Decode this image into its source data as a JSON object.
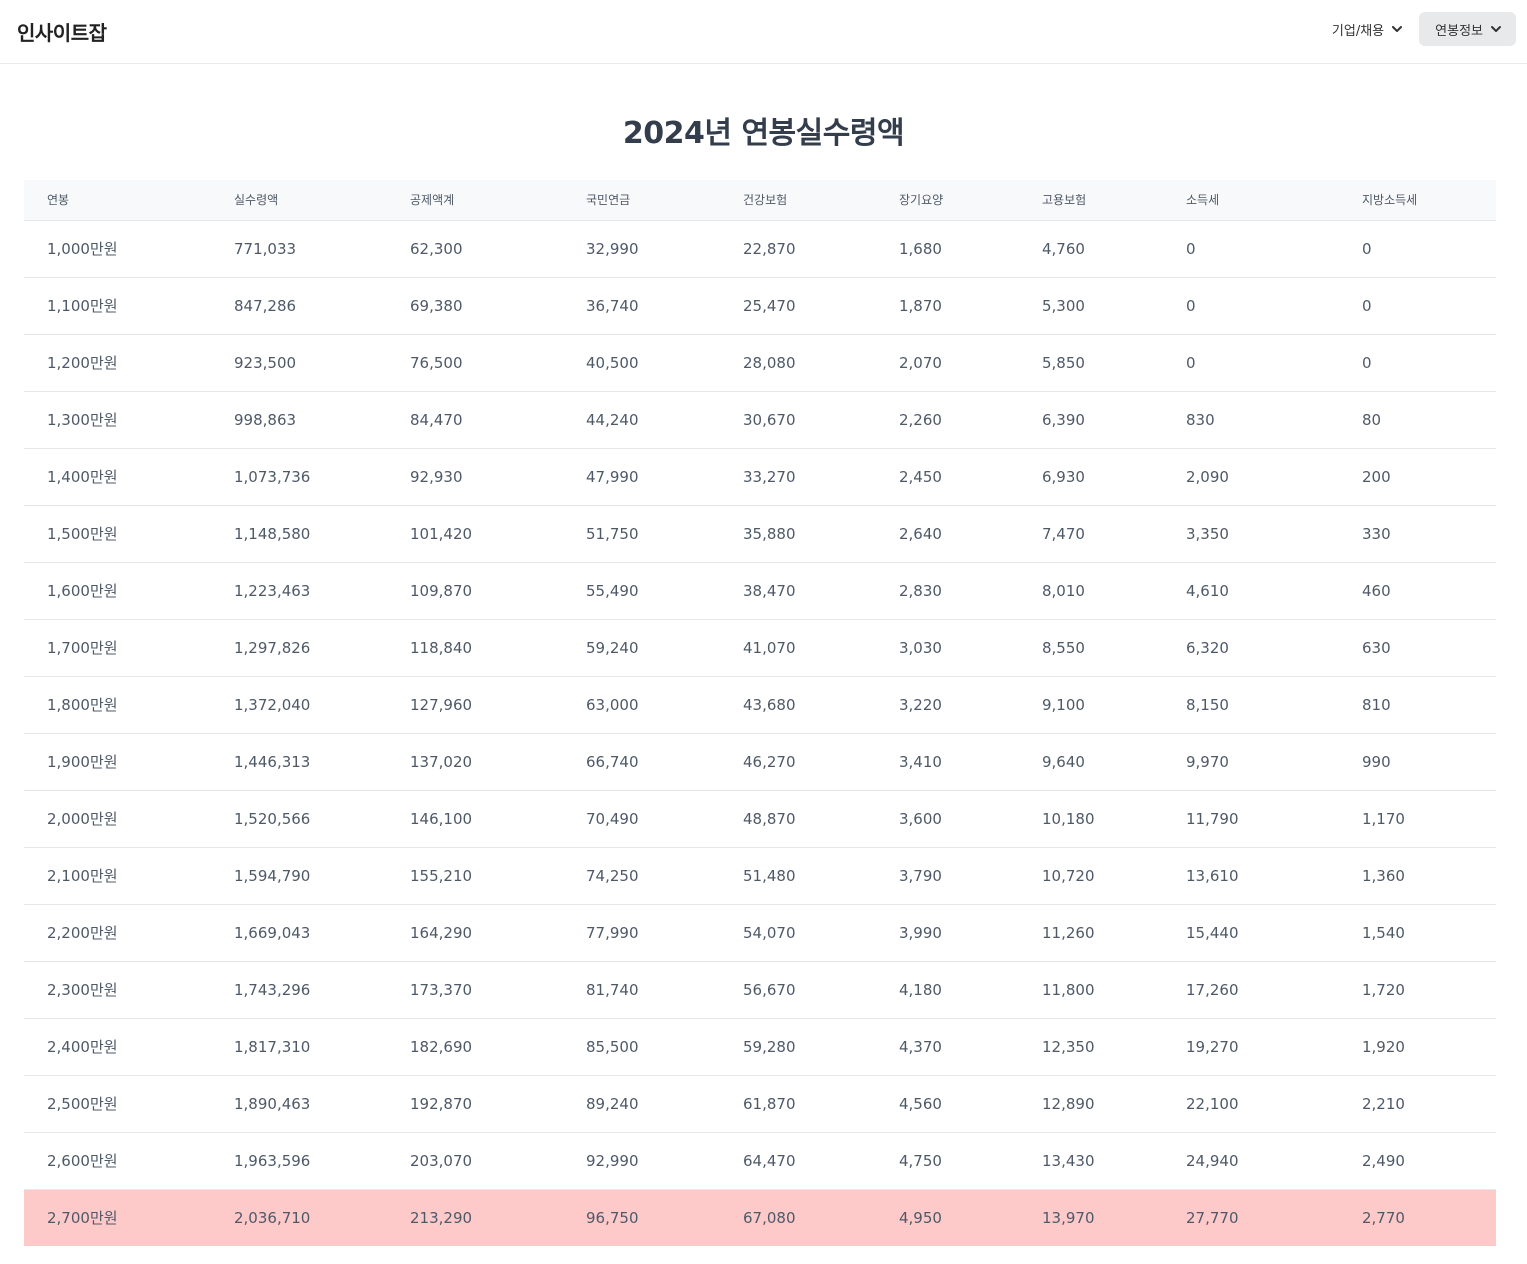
{
  "header": {
    "logo": "인사이트잡",
    "nav": [
      {
        "label": "기업/채용"
      },
      {
        "label": "연봉정보"
      }
    ]
  },
  "page": {
    "title": "2024년 연봉실수령액"
  },
  "table": {
    "columns": [
      "연봉",
      "실수령액",
      "공제액계",
      "국민연금",
      "건강보험",
      "장기요양",
      "고용보험",
      "소득세",
      "지방소득세"
    ],
    "rows": [
      [
        "1,000만원",
        "771,033",
        "62,300",
        "32,990",
        "22,870",
        "1,680",
        "4,760",
        "0",
        "0"
      ],
      [
        "1,100만원",
        "847,286",
        "69,380",
        "36,740",
        "25,470",
        "1,870",
        "5,300",
        "0",
        "0"
      ],
      [
        "1,200만원",
        "923,500",
        "76,500",
        "40,500",
        "28,080",
        "2,070",
        "5,850",
        "0",
        "0"
      ],
      [
        "1,300만원",
        "998,863",
        "84,470",
        "44,240",
        "30,670",
        "2,260",
        "6,390",
        "830",
        "80"
      ],
      [
        "1,400만원",
        "1,073,736",
        "92,930",
        "47,990",
        "33,270",
        "2,450",
        "6,930",
        "2,090",
        "200"
      ],
      [
        "1,500만원",
        "1,148,580",
        "101,420",
        "51,750",
        "35,880",
        "2,640",
        "7,470",
        "3,350",
        "330"
      ],
      [
        "1,600만원",
        "1,223,463",
        "109,870",
        "55,490",
        "38,470",
        "2,830",
        "8,010",
        "4,610",
        "460"
      ],
      [
        "1,700만원",
        "1,297,826",
        "118,840",
        "59,240",
        "41,070",
        "3,030",
        "8,550",
        "6,320",
        "630"
      ],
      [
        "1,800만원",
        "1,372,040",
        "127,960",
        "63,000",
        "43,680",
        "3,220",
        "9,100",
        "8,150",
        "810"
      ],
      [
        "1,900만원",
        "1,446,313",
        "137,020",
        "66,740",
        "46,270",
        "3,410",
        "9,640",
        "9,970",
        "990"
      ],
      [
        "2,000만원",
        "1,520,566",
        "146,100",
        "70,490",
        "48,870",
        "3,600",
        "10,180",
        "11,790",
        "1,170"
      ],
      [
        "2,100만원",
        "1,594,790",
        "155,210",
        "74,250",
        "51,480",
        "3,790",
        "10,720",
        "13,610",
        "1,360"
      ],
      [
        "2,200만원",
        "1,669,043",
        "164,290",
        "77,990",
        "54,070",
        "3,990",
        "11,260",
        "15,440",
        "1,540"
      ],
      [
        "2,300만원",
        "1,743,296",
        "173,370",
        "81,740",
        "56,670",
        "4,180",
        "11,800",
        "17,260",
        "1,720"
      ],
      [
        "2,400만원",
        "1,817,310",
        "182,690",
        "85,500",
        "59,280",
        "4,370",
        "12,350",
        "19,270",
        "1,920"
      ],
      [
        "2,500만원",
        "1,890,463",
        "192,870",
        "89,240",
        "61,870",
        "4,560",
        "12,890",
        "22,100",
        "2,210"
      ],
      [
        "2,600만원",
        "1,963,596",
        "203,070",
        "92,990",
        "64,470",
        "4,750",
        "13,430",
        "24,940",
        "2,490"
      ],
      [
        "2,700만원",
        "2,036,710",
        "213,290",
        "96,750",
        "67,080",
        "4,950",
        "13,970",
        "27,770",
        "2,770"
      ]
    ],
    "highlight_row": 17,
    "highlight_color": "#fec9c9"
  },
  "colors": {
    "text": "#333d4b",
    "cell_text": "#4e5968",
    "header_bg": "#f8f9fa",
    "border": "#e5e8eb",
    "nav_active_bg": "#e8e9eb"
  },
  "icons": {
    "nav_dropdown": "chevron-down-icon"
  }
}
